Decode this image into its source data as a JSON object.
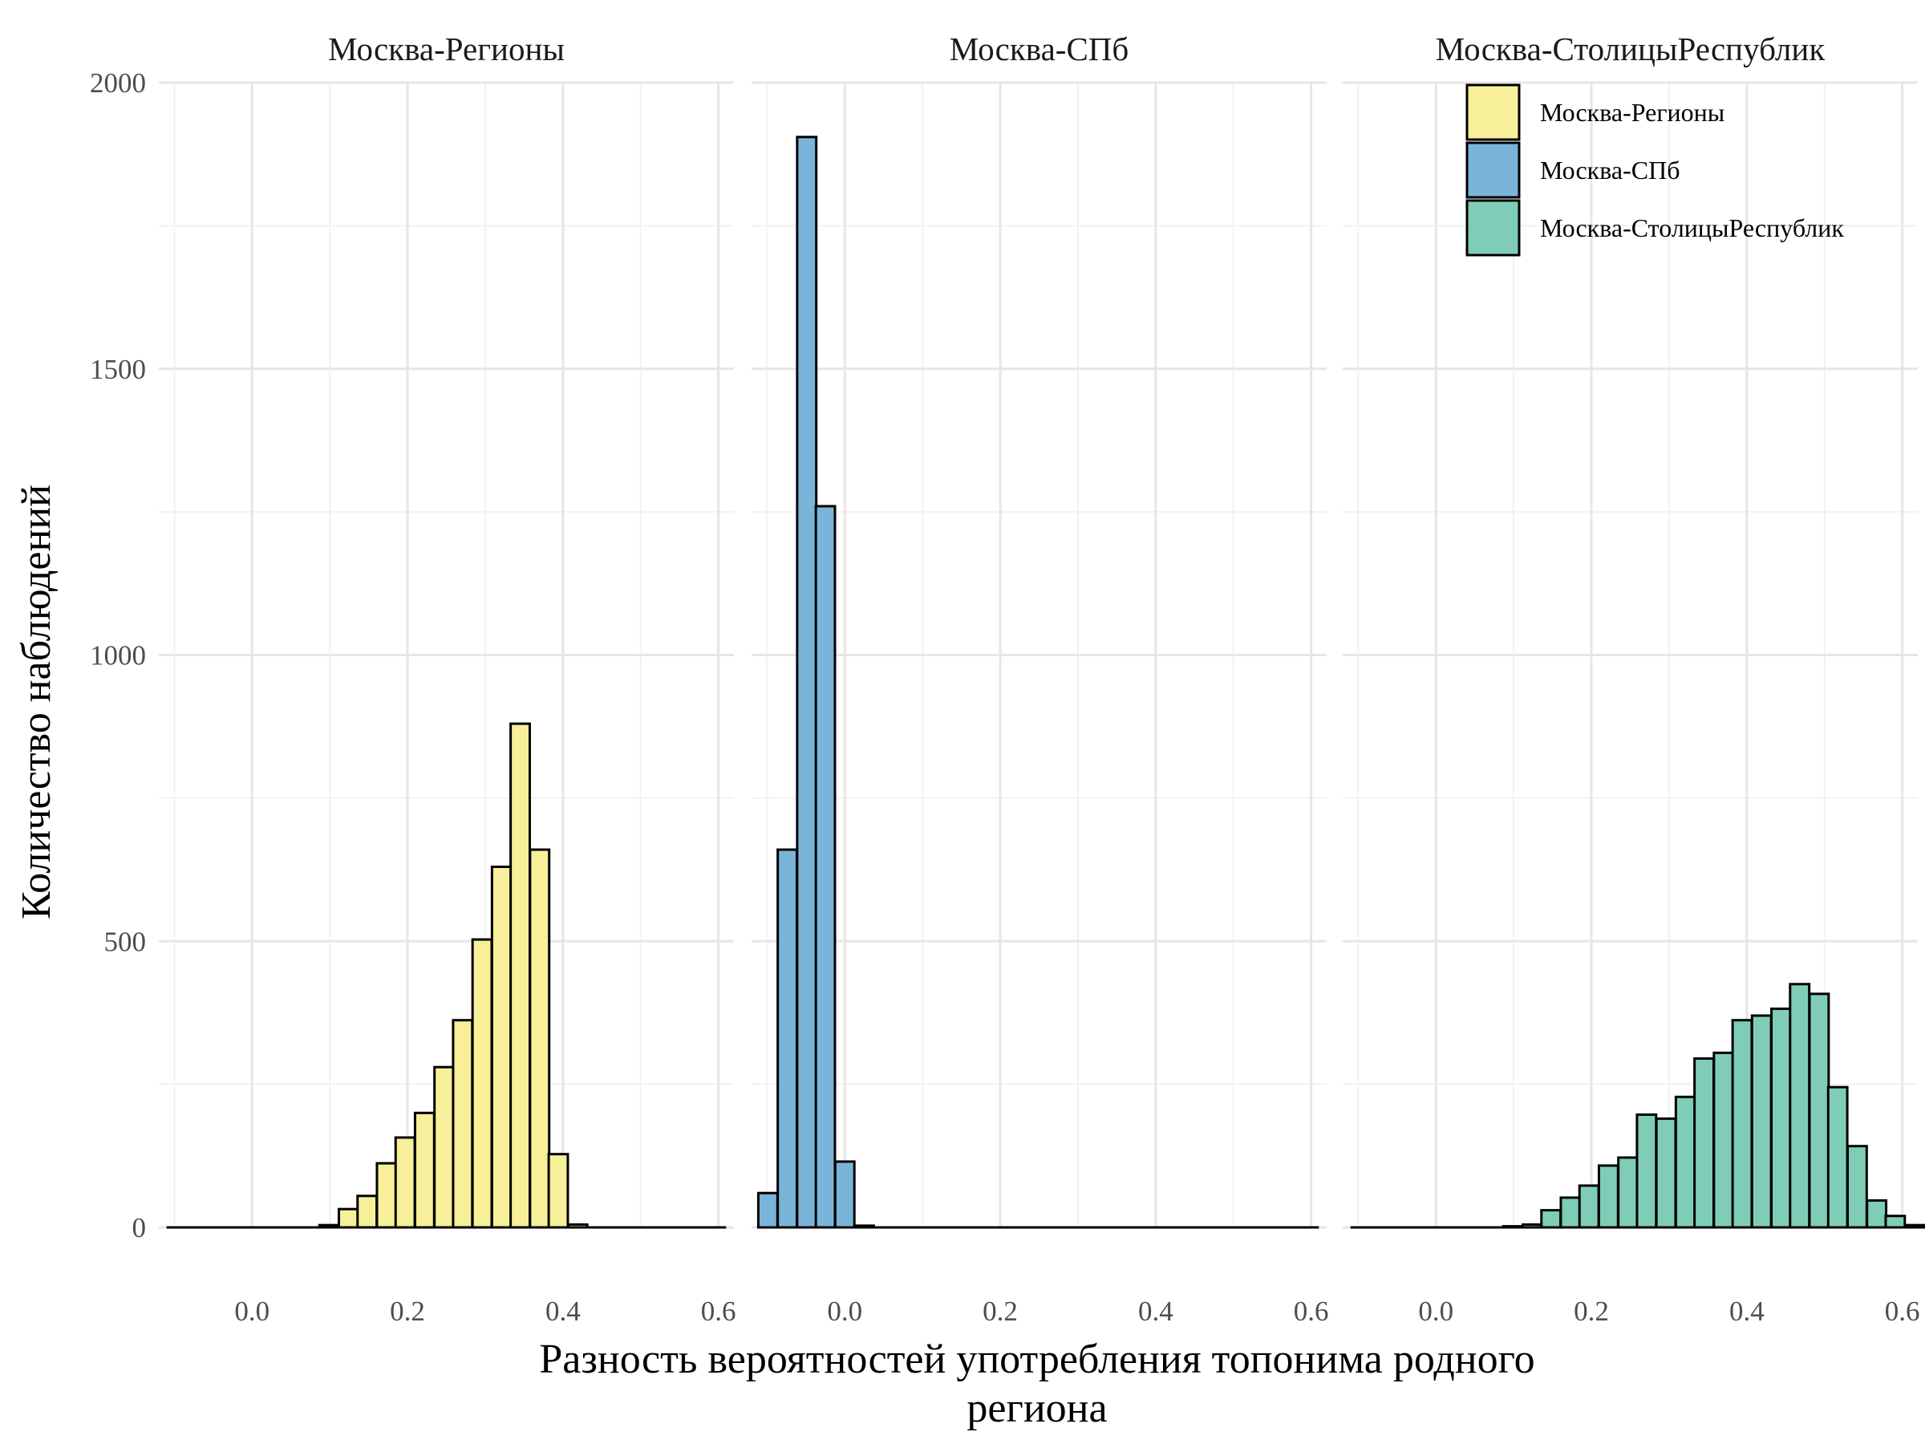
{
  "chart_data": {
    "type": "bar",
    "chart_kind": "faceted histogram",
    "xlabel": "Разность вероятностей употребления топонима родного региона",
    "xlabel_lines": [
      "Разность вероятностей употребления топонима родного",
      "региона"
    ],
    "ylabel": "Количество наблюдений",
    "xlim": [
      -0.12,
      0.62
    ],
    "ylim": [
      0,
      2000
    ],
    "x_ticks": [
      0.0,
      0.2,
      0.4,
      0.6
    ],
    "x_tick_labels": [
      "0.0",
      "0.2",
      "0.4",
      "0.6"
    ],
    "y_ticks": [
      0,
      500,
      1000,
      1500,
      2000
    ],
    "y_tick_labels": [
      "0",
      "500",
      "1000",
      "1500",
      "2000"
    ],
    "bin_width": 0.0246,
    "grid": true,
    "legend_position": "top-right",
    "legend": [
      {
        "label": "Москва-Регионы",
        "color": "#f7ef99"
      },
      {
        "label": "Москва-СПб",
        "color": "#7ab4d8"
      },
      {
        "label": "Москва-СтолицыРеспублик",
        "color": "#7fcdb6"
      }
    ],
    "facets": [
      {
        "title": "Москва-Регионы",
        "color": "#f7ef99",
        "bins": [
          {
            "x": 0.099,
            "count": 4
          },
          {
            "x": 0.124,
            "count": 32
          },
          {
            "x": 0.148,
            "count": 55
          },
          {
            "x": 0.173,
            "count": 112
          },
          {
            "x": 0.197,
            "count": 157
          },
          {
            "x": 0.222,
            "count": 200
          },
          {
            "x": 0.247,
            "count": 280
          },
          {
            "x": 0.271,
            "count": 362
          },
          {
            "x": 0.296,
            "count": 503
          },
          {
            "x": 0.321,
            "count": 630
          },
          {
            "x": 0.345,
            "count": 880
          },
          {
            "x": 0.37,
            "count": 660
          },
          {
            "x": 0.394,
            "count": 128
          },
          {
            "x": 0.419,
            "count": 5
          }
        ],
        "zero_range": [
          -0.11,
          0.61
        ]
      },
      {
        "title": "Москва-СПб",
        "color": "#7ab4d8",
        "bins": [
          {
            "x": -0.099,
            "count": 60
          },
          {
            "x": -0.074,
            "count": 660
          },
          {
            "x": -0.049,
            "count": 1905
          },
          {
            "x": -0.025,
            "count": 1260
          },
          {
            "x": 0.0,
            "count": 115
          },
          {
            "x": 0.025,
            "count": 3
          }
        ],
        "zero_range": [
          -0.11,
          0.61
        ]
      },
      {
        "title": "Москва-СтолицыРеспублик",
        "color": "#7fcdb6",
        "bins": [
          {
            "x": 0.099,
            "count": 2
          },
          {
            "x": 0.124,
            "count": 5
          },
          {
            "x": 0.148,
            "count": 30
          },
          {
            "x": 0.173,
            "count": 52
          },
          {
            "x": 0.197,
            "count": 73
          },
          {
            "x": 0.222,
            "count": 108
          },
          {
            "x": 0.247,
            "count": 122
          },
          {
            "x": 0.271,
            "count": 197
          },
          {
            "x": 0.296,
            "count": 190
          },
          {
            "x": 0.321,
            "count": 228
          },
          {
            "x": 0.345,
            "count": 295
          },
          {
            "x": 0.37,
            "count": 305
          },
          {
            "x": 0.394,
            "count": 362
          },
          {
            "x": 0.419,
            "count": 370
          },
          {
            "x": 0.444,
            "count": 382
          },
          {
            "x": 0.468,
            "count": 425
          },
          {
            "x": 0.493,
            "count": 408
          },
          {
            "x": 0.517,
            "count": 245
          },
          {
            "x": 0.542,
            "count": 142
          },
          {
            "x": 0.567,
            "count": 47
          },
          {
            "x": 0.591,
            "count": 20
          },
          {
            "x": 0.616,
            "count": 4
          }
        ],
        "zero_range": [
          -0.11,
          0.61
        ]
      }
    ]
  }
}
